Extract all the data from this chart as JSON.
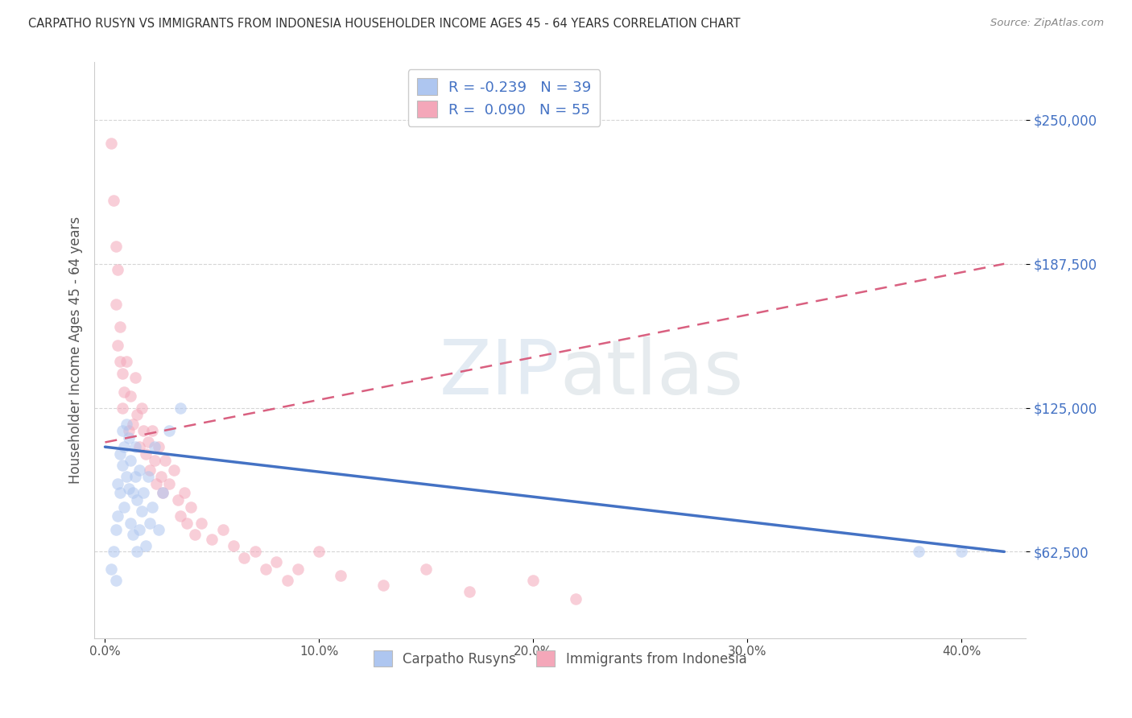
{
  "title": "CARPATHO RUSYN VS IMMIGRANTS FROM INDONESIA HOUSEHOLDER INCOME AGES 45 - 64 YEARS CORRELATION CHART",
  "source": "Source: ZipAtlas.com",
  "ylabel": "Householder Income Ages 45 - 64 years",
  "xlabel_ticks": [
    "0.0%",
    "10.0%",
    "20.0%",
    "30.0%",
    "40.0%"
  ],
  "xlabel_vals": [
    0.0,
    0.1,
    0.2,
    0.3,
    0.4
  ],
  "ytick_labels": [
    "$62,500",
    "$125,000",
    "$187,500",
    "$250,000"
  ],
  "ytick_vals": [
    62500,
    125000,
    187500,
    250000
  ],
  "ylim": [
    25000,
    275000
  ],
  "xlim": [
    -0.005,
    0.43
  ],
  "legend_entry1": {
    "color": "#aec6f0",
    "R": "-0.239",
    "N": "39",
    "label": "Carpatho Rusyns"
  },
  "legend_entry2": {
    "color": "#f4a7b9",
    "R": "0.090",
    "N": "55",
    "label": "Immigrants from Indonesia"
  },
  "blue_scatter_x": [
    0.003,
    0.004,
    0.005,
    0.005,
    0.006,
    0.006,
    0.007,
    0.007,
    0.008,
    0.008,
    0.009,
    0.009,
    0.01,
    0.01,
    0.011,
    0.011,
    0.012,
    0.012,
    0.013,
    0.013,
    0.014,
    0.014,
    0.015,
    0.015,
    0.016,
    0.016,
    0.017,
    0.018,
    0.019,
    0.02,
    0.021,
    0.022,
    0.023,
    0.025,
    0.027,
    0.03,
    0.035,
    0.38,
    0.4
  ],
  "blue_scatter_y": [
    55000,
    62500,
    72000,
    50000,
    78000,
    92000,
    105000,
    88000,
    115000,
    100000,
    108000,
    82000,
    95000,
    118000,
    90000,
    112000,
    75000,
    102000,
    88000,
    70000,
    95000,
    108000,
    62500,
    85000,
    72000,
    98000,
    80000,
    88000,
    65000,
    95000,
    75000,
    82000,
    108000,
    72000,
    88000,
    115000,
    125000,
    62500,
    62500
  ],
  "pink_scatter_x": [
    0.003,
    0.004,
    0.005,
    0.005,
    0.006,
    0.006,
    0.007,
    0.007,
    0.008,
    0.008,
    0.009,
    0.01,
    0.011,
    0.012,
    0.013,
    0.014,
    0.015,
    0.016,
    0.017,
    0.018,
    0.019,
    0.02,
    0.021,
    0.022,
    0.023,
    0.024,
    0.025,
    0.026,
    0.027,
    0.028,
    0.03,
    0.032,
    0.034,
    0.035,
    0.037,
    0.038,
    0.04,
    0.042,
    0.045,
    0.05,
    0.055,
    0.06,
    0.065,
    0.07,
    0.075,
    0.08,
    0.085,
    0.09,
    0.1,
    0.11,
    0.13,
    0.15,
    0.17,
    0.2,
    0.22
  ],
  "pink_scatter_y": [
    240000,
    215000,
    195000,
    170000,
    185000,
    152000,
    145000,
    160000,
    140000,
    125000,
    132000,
    145000,
    115000,
    130000,
    118000,
    138000,
    122000,
    108000,
    125000,
    115000,
    105000,
    110000,
    98000,
    115000,
    102000,
    92000,
    108000,
    95000,
    88000,
    102000,
    92000,
    98000,
    85000,
    78000,
    88000,
    75000,
    82000,
    70000,
    75000,
    68000,
    72000,
    65000,
    60000,
    62500,
    55000,
    58000,
    50000,
    55000,
    62500,
    52000,
    48000,
    55000,
    45000,
    50000,
    42000
  ],
  "blue_line_x": [
    0.0,
    0.42
  ],
  "blue_line_y": [
    108000,
    62500
  ],
  "pink_line_x": [
    0.0,
    0.42
  ],
  "pink_line_y": [
    110000,
    187500
  ],
  "scatter_alpha": 0.55,
  "scatter_size": 110,
  "line_color_blue": "#4472c4",
  "line_color_pink": "#d96080",
  "dot_color_blue": "#aec6f0",
  "dot_color_pink": "#f4a7b9",
  "watermark_zip": "ZIP",
  "watermark_atlas": "atlas",
  "background_color": "#ffffff",
  "grid_color": "#cccccc"
}
